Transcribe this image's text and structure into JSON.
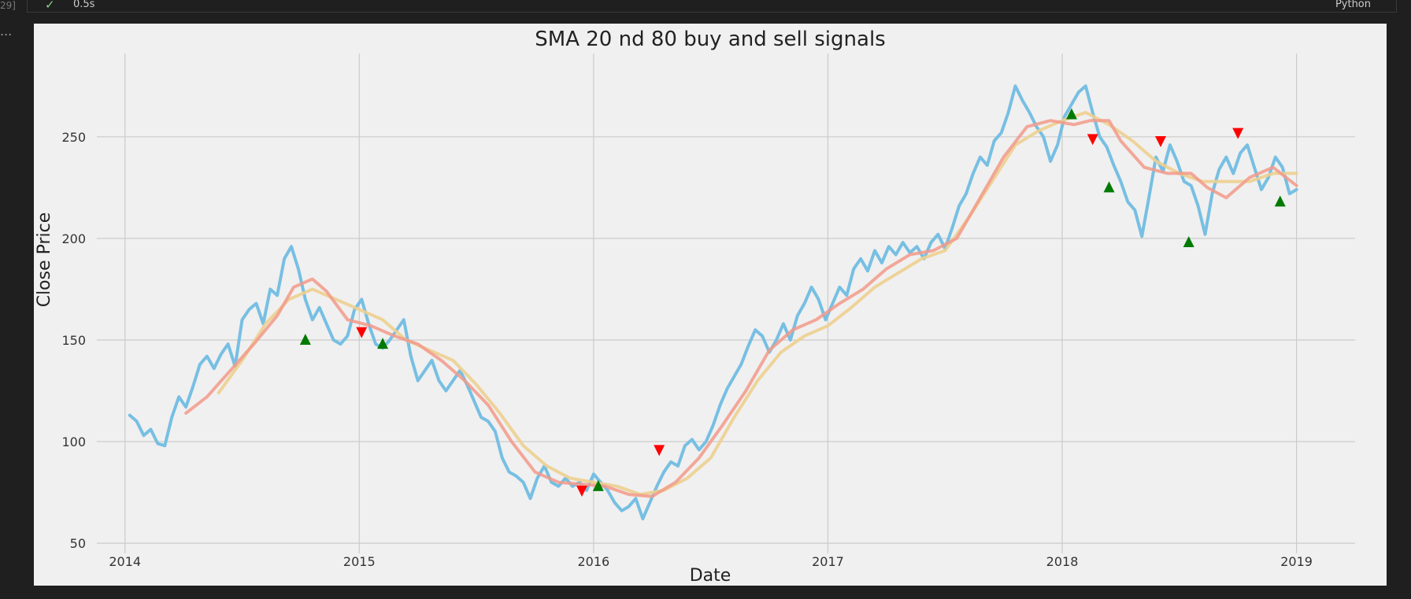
{
  "cell": {
    "exec_count": "29]",
    "status_icon": "check-icon",
    "exec_time": "0.5s",
    "language": "Python",
    "output_prefix": "..."
  },
  "chart_data": {
    "type": "line",
    "title": "SMA 20 nd 80 buy and sell signals",
    "xlabel": "Date",
    "ylabel": "Close Price",
    "x_ticks": [
      "2014",
      "2015",
      "2016",
      "2017",
      "2018",
      "2019"
    ],
    "y_ticks": [
      50,
      100,
      150,
      200,
      250
    ],
    "xlim": [
      2013.88,
      2019.25
    ],
    "ylim": [
      45,
      291
    ],
    "grid": true,
    "legend": "none",
    "colors": {
      "close": "#77bfe3",
      "sma20": "#f29a8a",
      "sma80": "#edcf8f",
      "buy": "#007a00",
      "sell": "#ff0000",
      "background": "#f0f0f0",
      "grid": "#cbcbcb"
    },
    "close_price": [
      [
        2014.02,
        113
      ],
      [
        2014.05,
        110
      ],
      [
        2014.08,
        103
      ],
      [
        2014.11,
        106
      ],
      [
        2014.14,
        99
      ],
      [
        2014.17,
        98
      ],
      [
        2014.2,
        112
      ],
      [
        2014.23,
        122
      ],
      [
        2014.26,
        117
      ],
      [
        2014.29,
        127
      ],
      [
        2014.32,
        138
      ],
      [
        2014.35,
        142
      ],
      [
        2014.38,
        136
      ],
      [
        2014.41,
        143
      ],
      [
        2014.44,
        148
      ],
      [
        2014.47,
        137
      ],
      [
        2014.5,
        160
      ],
      [
        2014.53,
        165
      ],
      [
        2014.56,
        168
      ],
      [
        2014.59,
        158
      ],
      [
        2014.62,
        175
      ],
      [
        2014.65,
        172
      ],
      [
        2014.68,
        190
      ],
      [
        2014.71,
        196
      ],
      [
        2014.74,
        185
      ],
      [
        2014.77,
        170
      ],
      [
        2014.8,
        160
      ],
      [
        2014.83,
        166
      ],
      [
        2014.86,
        158
      ],
      [
        2014.89,
        150
      ],
      [
        2014.92,
        148
      ],
      [
        2014.95,
        152
      ],
      [
        2014.98,
        165
      ],
      [
        2015.01,
        170
      ],
      [
        2015.04,
        158
      ],
      [
        2015.07,
        148
      ],
      [
        2015.1,
        146
      ],
      [
        2015.13,
        150
      ],
      [
        2015.16,
        155
      ],
      [
        2015.19,
        160
      ],
      [
        2015.22,
        142
      ],
      [
        2015.25,
        130
      ],
      [
        2015.28,
        135
      ],
      [
        2015.31,
        140
      ],
      [
        2015.34,
        130
      ],
      [
        2015.37,
        125
      ],
      [
        2015.4,
        130
      ],
      [
        2015.43,
        135
      ],
      [
        2015.46,
        128
      ],
      [
        2015.49,
        120
      ],
      [
        2015.52,
        112
      ],
      [
        2015.55,
        110
      ],
      [
        2015.58,
        105
      ],
      [
        2015.61,
        92
      ],
      [
        2015.64,
        85
      ],
      [
        2015.67,
        83
      ],
      [
        2015.7,
        80
      ],
      [
        2015.73,
        72
      ],
      [
        2015.76,
        82
      ],
      [
        2015.79,
        88
      ],
      [
        2015.82,
        80
      ],
      [
        2015.85,
        78
      ],
      [
        2015.88,
        82
      ],
      [
        2015.91,
        78
      ],
      [
        2015.94,
        80
      ],
      [
        2015.97,
        76
      ],
      [
        2016.0,
        84
      ],
      [
        2016.03,
        80
      ],
      [
        2016.06,
        76
      ],
      [
        2016.09,
        70
      ],
      [
        2016.12,
        66
      ],
      [
        2016.15,
        68
      ],
      [
        2016.18,
        72
      ],
      [
        2016.21,
        62
      ],
      [
        2016.24,
        70
      ],
      [
        2016.27,
        78
      ],
      [
        2016.3,
        85
      ],
      [
        2016.33,
        90
      ],
      [
        2016.36,
        88
      ],
      [
        2016.39,
        98
      ],
      [
        2016.42,
        101
      ],
      [
        2016.45,
        96
      ],
      [
        2016.48,
        100
      ],
      [
        2016.51,
        108
      ],
      [
        2016.54,
        118
      ],
      [
        2016.57,
        126
      ],
      [
        2016.6,
        132
      ],
      [
        2016.63,
        138
      ],
      [
        2016.66,
        147
      ],
      [
        2016.69,
        155
      ],
      [
        2016.72,
        152
      ],
      [
        2016.75,
        144
      ],
      [
        2016.78,
        150
      ],
      [
        2016.81,
        158
      ],
      [
        2016.84,
        150
      ],
      [
        2016.87,
        162
      ],
      [
        2016.9,
        168
      ],
      [
        2016.93,
        176
      ],
      [
        2016.96,
        170
      ],
      [
        2016.99,
        160
      ],
      [
        2017.02,
        168
      ],
      [
        2017.05,
        176
      ],
      [
        2017.08,
        172
      ],
      [
        2017.11,
        185
      ],
      [
        2017.14,
        190
      ],
      [
        2017.17,
        184
      ],
      [
        2017.2,
        194
      ],
      [
        2017.23,
        188
      ],
      [
        2017.26,
        196
      ],
      [
        2017.29,
        192
      ],
      [
        2017.32,
        198
      ],
      [
        2017.35,
        193
      ],
      [
        2017.38,
        196
      ],
      [
        2017.41,
        190
      ],
      [
        2017.44,
        198
      ],
      [
        2017.47,
        202
      ],
      [
        2017.5,
        195
      ],
      [
        2017.53,
        205
      ],
      [
        2017.56,
        216
      ],
      [
        2017.59,
        222
      ],
      [
        2017.62,
        232
      ],
      [
        2017.65,
        240
      ],
      [
        2017.68,
        236
      ],
      [
        2017.71,
        248
      ],
      [
        2017.74,
        252
      ],
      [
        2017.77,
        262
      ],
      [
        2017.8,
        275
      ],
      [
        2017.83,
        268
      ],
      [
        2017.86,
        262
      ],
      [
        2017.89,
        255
      ],
      [
        2017.92,
        250
      ],
      [
        2017.95,
        238
      ],
      [
        2017.98,
        246
      ],
      [
        2018.01,
        260
      ],
      [
        2018.04,
        266
      ],
      [
        2018.07,
        272
      ],
      [
        2018.1,
        275
      ],
      [
        2018.13,
        262
      ],
      [
        2018.16,
        250
      ],
      [
        2018.19,
        245
      ],
      [
        2018.22,
        236
      ],
      [
        2018.25,
        228
      ],
      [
        2018.28,
        218
      ],
      [
        2018.31,
        214
      ],
      [
        2018.34,
        201
      ],
      [
        2018.37,
        220
      ],
      [
        2018.4,
        240
      ],
      [
        2018.43,
        233
      ],
      [
        2018.46,
        246
      ],
      [
        2018.49,
        238
      ],
      [
        2018.52,
        228
      ],
      [
        2018.55,
        226
      ],
      [
        2018.58,
        216
      ],
      [
        2018.61,
        202
      ],
      [
        2018.64,
        222
      ],
      [
        2018.67,
        234
      ],
      [
        2018.7,
        240
      ],
      [
        2018.73,
        232
      ],
      [
        2018.76,
        242
      ],
      [
        2018.79,
        246
      ],
      [
        2018.82,
        235
      ],
      [
        2018.85,
        224
      ],
      [
        2018.88,
        230
      ],
      [
        2018.91,
        240
      ],
      [
        2018.94,
        235
      ],
      [
        2018.97,
        222
      ],
      [
        2019.0,
        224
      ]
    ],
    "sma20": [
      [
        2014.26,
        114
      ],
      [
        2014.35,
        122
      ],
      [
        2014.45,
        135
      ],
      [
        2014.55,
        148
      ],
      [
        2014.65,
        162
      ],
      [
        2014.72,
        176
      ],
      [
        2014.8,
        180
      ],
      [
        2014.86,
        174
      ],
      [
        2014.95,
        160
      ],
      [
        2015.05,
        157
      ],
      [
        2015.15,
        152
      ],
      [
        2015.25,
        148
      ],
      [
        2015.35,
        140
      ],
      [
        2015.45,
        130
      ],
      [
        2015.55,
        118
      ],
      [
        2015.65,
        100
      ],
      [
        2015.75,
        85
      ],
      [
        2015.85,
        80
      ],
      [
        2015.95,
        79
      ],
      [
        2016.05,
        78
      ],
      [
        2016.15,
        74
      ],
      [
        2016.25,
        73
      ],
      [
        2016.35,
        80
      ],
      [
        2016.45,
        92
      ],
      [
        2016.55,
        108
      ],
      [
        2016.65,
        125
      ],
      [
        2016.75,
        145
      ],
      [
        2016.85,
        155
      ],
      [
        2016.95,
        160
      ],
      [
        2017.05,
        168
      ],
      [
        2017.15,
        175
      ],
      [
        2017.25,
        185
      ],
      [
        2017.35,
        192
      ],
      [
        2017.45,
        194
      ],
      [
        2017.55,
        200
      ],
      [
        2017.65,
        220
      ],
      [
        2017.75,
        240
      ],
      [
        2017.85,
        255
      ],
      [
        2017.95,
        258
      ],
      [
        2018.05,
        256
      ],
      [
        2018.12,
        258
      ],
      [
        2018.2,
        258
      ],
      [
        2018.25,
        248
      ],
      [
        2018.35,
        235
      ],
      [
        2018.45,
        232
      ],
      [
        2018.55,
        232
      ],
      [
        2018.62,
        225
      ],
      [
        2018.7,
        220
      ],
      [
        2018.8,
        230
      ],
      [
        2018.9,
        235
      ],
      [
        2019.0,
        226
      ]
    ],
    "sma80": [
      [
        2014.4,
        124
      ],
      [
        2014.5,
        140
      ],
      [
        2014.6,
        158
      ],
      [
        2014.7,
        170
      ],
      [
        2014.8,
        175
      ],
      [
        2014.9,
        170
      ],
      [
        2015.0,
        165
      ],
      [
        2015.1,
        160
      ],
      [
        2015.2,
        150
      ],
      [
        2015.3,
        145
      ],
      [
        2015.4,
        140
      ],
      [
        2015.5,
        128
      ],
      [
        2015.6,
        114
      ],
      [
        2015.7,
        98
      ],
      [
        2015.8,
        88
      ],
      [
        2015.9,
        82
      ],
      [
        2016.0,
        80
      ],
      [
        2016.1,
        78
      ],
      [
        2016.2,
        74
      ],
      [
        2016.3,
        76
      ],
      [
        2016.4,
        82
      ],
      [
        2016.5,
        92
      ],
      [
        2016.6,
        112
      ],
      [
        2016.7,
        130
      ],
      [
        2016.8,
        144
      ],
      [
        2016.9,
        152
      ],
      [
        2017.0,
        157
      ],
      [
        2017.1,
        166
      ],
      [
        2017.2,
        176
      ],
      [
        2017.3,
        183
      ],
      [
        2017.4,
        190
      ],
      [
        2017.5,
        194
      ],
      [
        2017.6,
        210
      ],
      [
        2017.7,
        228
      ],
      [
        2017.8,
        246
      ],
      [
        2017.9,
        253
      ],
      [
        2018.0,
        258
      ],
      [
        2018.1,
        262
      ],
      [
        2018.2,
        256
      ],
      [
        2018.3,
        248
      ],
      [
        2018.4,
        238
      ],
      [
        2018.5,
        232
      ],
      [
        2018.6,
        228
      ],
      [
        2018.7,
        228
      ],
      [
        2018.8,
        228
      ],
      [
        2018.9,
        232
      ],
      [
        2019.0,
        232
      ]
    ],
    "buy_signals": [
      [
        2014.77,
        150
      ],
      [
        2015.1,
        148
      ],
      [
        2016.02,
        78
      ],
      [
        2018.04,
        261
      ],
      [
        2018.2,
        225
      ],
      [
        2018.54,
        198
      ],
      [
        2018.93,
        218
      ]
    ],
    "sell_signals": [
      [
        2015.01,
        154
      ],
      [
        2015.95,
        76
      ],
      [
        2016.28,
        96
      ],
      [
        2018.13,
        249
      ],
      [
        2018.42,
        248
      ],
      [
        2018.75,
        252
      ]
    ]
  }
}
